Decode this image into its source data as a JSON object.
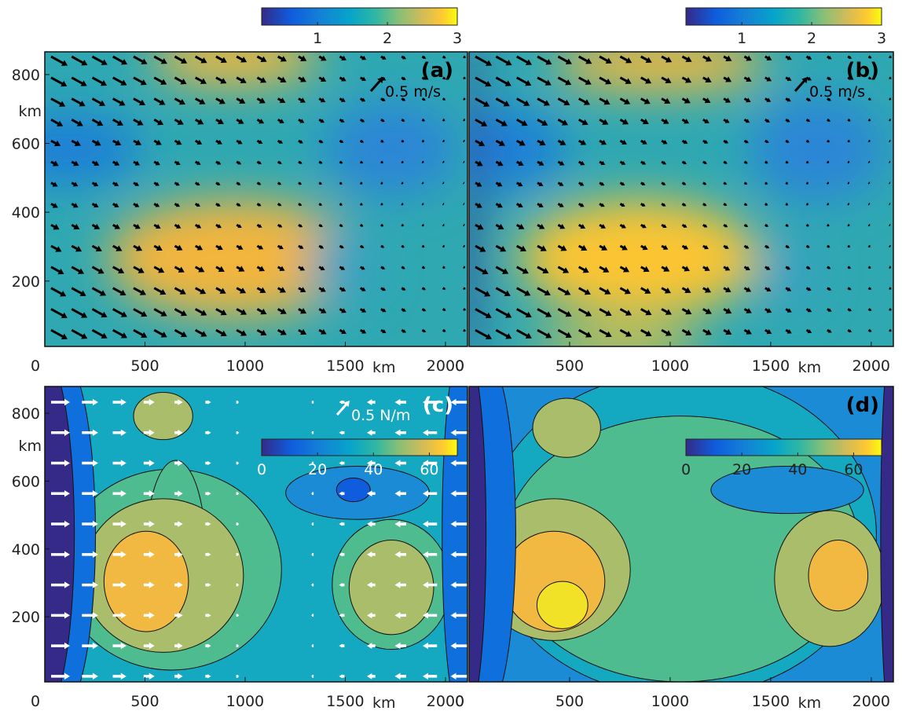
{
  "chart_data": [
    {
      "type": "field",
      "panel_label": "(a)",
      "scale_label": "0.5 m/s",
      "x_label": "km",
      "y_label": "km",
      "xlim": [
        0,
        2110
      ],
      "xticks": [
        0,
        500,
        1000,
        1500,
        2000
      ],
      "ylim": [
        10,
        866
      ],
      "yticks": [
        200,
        400,
        600,
        800
      ],
      "colorbar": {
        "lim": [
          0.2,
          3
        ],
        "ticks": [
          1,
          2,
          3
        ]
      }
    },
    {
      "type": "field",
      "panel_label": "(b)",
      "scale_label": "0.5 m/s",
      "x_label": "km",
      "xlim": [
        0,
        2110
      ],
      "xticks": [
        0,
        500,
        1000,
        1500,
        2000
      ],
      "colorbar": {
        "lim": [
          0.2,
          3
        ],
        "ticks": [
          1,
          2,
          3
        ]
      }
    },
    {
      "type": "contour",
      "panel_label": "(c)",
      "scale_label": "0.5 N/m",
      "x_label": "km",
      "y_label": "km",
      "xlim": [
        0,
        2110
      ],
      "xticks": [
        0,
        500,
        1000,
        1500,
        2000
      ],
      "ylim": [
        8,
        879
      ],
      "yticks": [
        200,
        400,
        600,
        800
      ],
      "colorbar": {
        "lim": [
          0,
          70
        ],
        "ticks": [
          0,
          20,
          40,
          60
        ]
      }
    },
    {
      "type": "contour",
      "panel_label": "(d)",
      "x_label": "km",
      "xlim": [
        0,
        2110
      ],
      "xticks": [
        0,
        500,
        1000,
        1500,
        2000
      ],
      "colorbar": {
        "lim": [
          0,
          70
        ],
        "ticks": [
          0,
          20,
          40,
          60
        ]
      }
    }
  ]
}
